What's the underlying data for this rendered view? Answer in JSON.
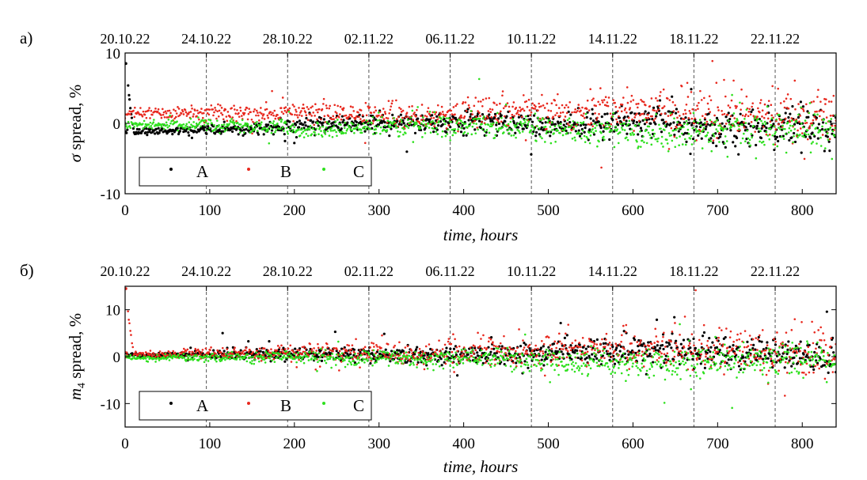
{
  "figure": {
    "panels": [
      {
        "letter": "а)",
        "xlabel": "time, hours",
        "ylabel_symbol": "σ",
        "ylabel_rest": " spread, %",
        "xlim": [
          0,
          840
        ],
        "ylim": [
          -10,
          10
        ],
        "xticks": [
          0,
          100,
          200,
          300,
          400,
          500,
          600,
          700,
          800
        ],
        "yticks": [
          -10,
          0,
          10
        ],
        "date_labels": [
          "20.10.22",
          "24.10.22",
          "28.10.22",
          "02.11.22",
          "06.11.22",
          "10.11.22",
          "14.11.22",
          "18.11.22",
          "22.11.22"
        ],
        "date_hours": [
          0,
          96,
          192,
          288,
          384,
          480,
          576,
          672,
          768
        ],
        "legend": [
          "A",
          "B",
          "C"
        ]
      },
      {
        "letter": "б)",
        "xlabel": "time, hours",
        "ylabel_symbol": "m",
        "ylabel_sub": "4",
        "ylabel_rest": " spread, %",
        "xlim": [
          0,
          840
        ],
        "ylim": [
          -15,
          15
        ],
        "xticks": [
          0,
          100,
          200,
          300,
          400,
          500,
          600,
          700,
          800
        ],
        "yticks": [
          -10,
          0,
          10
        ],
        "date_labels": [
          "20.10.22",
          "24.10.22",
          "28.10.22",
          "02.11.22",
          "06.11.22",
          "10.11.22",
          "14.11.22",
          "18.11.22",
          "22.11.22"
        ],
        "date_hours": [
          0,
          96,
          192,
          288,
          384,
          480,
          576,
          672,
          768
        ],
        "legend": [
          "A",
          "B",
          "C"
        ]
      }
    ]
  },
  "chart_data": [
    {
      "type": "scatter",
      "x_unit": "hours",
      "xlim": [
        0,
        840
      ],
      "ylim": [
        -10,
        10
      ],
      "grid": "dashed vertical lines at date boundaries",
      "legend_position": "bottom-left",
      "series": [
        {
          "name": "A",
          "color": "#000000",
          "x": [
            0,
            10,
            30,
            60,
            90,
            120,
            150,
            180,
            210,
            240,
            270,
            300,
            330,
            360,
            390,
            420,
            450,
            480,
            510,
            540,
            570,
            600,
            630,
            660,
            690,
            720,
            750,
            780,
            810,
            840
          ],
          "y": [
            8.5,
            -1.3,
            -1.2,
            -1.0,
            -0.8,
            -0.8,
            -0.7,
            -0.6,
            -0.2,
            0.0,
            0.1,
            0.2,
            0.2,
            0.1,
            0.0,
            0.1,
            0.0,
            -0.2,
            -0.3,
            -0.2,
            0.0,
            0.3,
            0.4,
            0.0,
            -0.8,
            -1.3,
            -0.5,
            -0.2,
            -0.6,
            -0.4
          ]
        },
        {
          "name": "B",
          "color": "#e8281e",
          "x": [
            0,
            10,
            30,
            60,
            90,
            120,
            150,
            180,
            210,
            240,
            270,
            300,
            330,
            360,
            390,
            420,
            450,
            480,
            510,
            540,
            570,
            600,
            630,
            660,
            690,
            720,
            750,
            780,
            810,
            840
          ],
          "y": [
            1.2,
            1.4,
            1.5,
            1.3,
            1.5,
            1.6,
            1.4,
            1.6,
            1.7,
            1.6,
            1.4,
            1.2,
            1.1,
            1.1,
            1.2,
            1.4,
            1.5,
            1.6,
            1.8,
            1.8,
            1.9,
            1.9,
            1.8,
            1.6,
            1.4,
            1.2,
            1.1,
            1.0,
            1.0,
            1.1
          ]
        },
        {
          "name": "C",
          "color": "#2ee01e",
          "x": [
            0,
            10,
            30,
            60,
            90,
            120,
            150,
            180,
            210,
            240,
            270,
            300,
            330,
            360,
            390,
            420,
            450,
            480,
            510,
            540,
            570,
            600,
            630,
            660,
            690,
            720,
            750,
            780,
            810,
            840
          ],
          "y": [
            -0.2,
            -0.2,
            -0.3,
            -0.3,
            -0.2,
            -0.3,
            -0.4,
            -0.5,
            -1.2,
            -0.8,
            -0.6,
            -0.5,
            -0.4,
            -0.4,
            -0.5,
            -0.6,
            -0.6,
            -0.8,
            -0.9,
            -1.0,
            -1.1,
            -1.2,
            -1.3,
            -1.3,
            -1.2,
            -1.0,
            -0.9,
            -0.8,
            -0.8,
            -0.7
          ]
        }
      ]
    },
    {
      "type": "scatter",
      "x_unit": "hours",
      "xlim": [
        0,
        840
      ],
      "ylim": [
        -15,
        15
      ],
      "grid": "dashed vertical lines at date boundaries",
      "legend_position": "bottom-left",
      "series": [
        {
          "name": "A",
          "color": "#000000",
          "x": [
            0,
            10,
            30,
            60,
            90,
            120,
            150,
            180,
            210,
            240,
            270,
            300,
            330,
            360,
            390,
            420,
            450,
            480,
            510,
            540,
            570,
            600,
            630,
            660,
            690,
            720,
            750,
            780,
            810,
            840
          ],
          "y": [
            0.5,
            0.3,
            0.2,
            0.3,
            0.5,
            0.4,
            0.3,
            0.4,
            0.5,
            0.5,
            0.4,
            0.3,
            0.3,
            0.3,
            0.4,
            0.5,
            0.6,
            0.8,
            1.0,
            1.0,
            1.1,
            1.5,
            1.5,
            1.2,
            0.8,
            0.5,
            0.4,
            0.3,
            0.3,
            0.3
          ]
        },
        {
          "name": "B",
          "color": "#e8281e",
          "x": [
            0,
            10,
            30,
            60,
            90,
            120,
            150,
            180,
            210,
            240,
            270,
            300,
            330,
            360,
            390,
            420,
            450,
            480,
            510,
            540,
            570,
            600,
            630,
            660,
            690,
            720,
            750,
            780,
            810,
            840
          ],
          "y": [
            14.5,
            0.5,
            0.5,
            0.6,
            0.8,
            0.7,
            0.6,
            0.8,
            1.0,
            1.0,
            0.8,
            0.7,
            0.6,
            0.6,
            0.7,
            0.9,
            1.0,
            1.2,
            1.4,
            1.4,
            1.5,
            1.6,
            1.5,
            1.4,
            1.2,
            1.0,
            0.9,
            0.8,
            0.8,
            0.8
          ]
        },
        {
          "name": "C",
          "color": "#2ee01e",
          "x": [
            0,
            10,
            30,
            60,
            90,
            120,
            150,
            180,
            210,
            240,
            270,
            300,
            330,
            360,
            390,
            420,
            450,
            480,
            510,
            540,
            570,
            600,
            630,
            660,
            690,
            720,
            750,
            780,
            810,
            840
          ],
          "y": [
            0.0,
            -0.2,
            -0.3,
            -0.3,
            -0.2,
            -0.3,
            -0.3,
            -0.2,
            -0.2,
            -0.3,
            -0.4,
            -0.4,
            -0.4,
            -0.5,
            -0.5,
            -0.5,
            -0.6,
            -0.8,
            -0.9,
            -1.0,
            -1.1,
            -1.2,
            -1.3,
            -1.3,
            -1.1,
            -0.9,
            -0.8,
            -0.7,
            -0.7,
            -0.6
          ]
        }
      ]
    }
  ]
}
